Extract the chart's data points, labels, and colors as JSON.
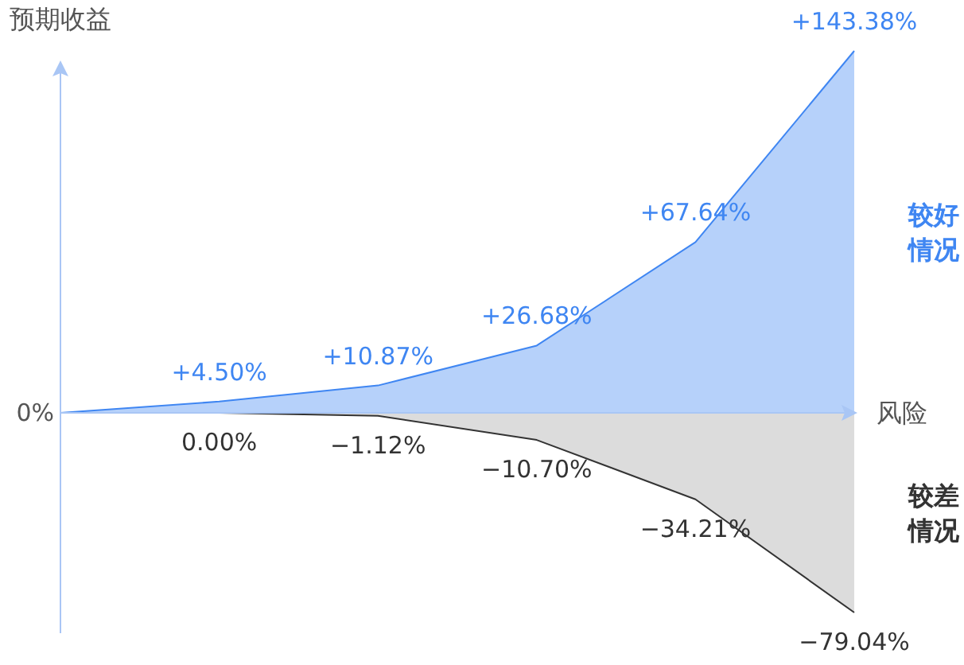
{
  "chart_data": {
    "type": "area",
    "ylabel": "预期收益",
    "xlabel": "风险",
    "categories": [
      null,
      null,
      null,
      null,
      null,
      null
    ],
    "annotations": [
      "0%"
    ],
    "ref_lines": [
      {
        "axis": "y",
        "value": 0,
        "color": "#a9c6f5"
      }
    ],
    "series": [
      {
        "name": "较好情况",
        "color": "#3f86f2",
        "values": [
          0,
          4.5,
          10.87,
          26.68,
          67.64,
          143.38
        ],
        "value_labels": [
          null,
          "+4.50%",
          "+10.87%",
          "+26.68%",
          "+67.64%",
          "+143.38%"
        ]
      },
      {
        "name": "较差情况",
        "color": "#333333",
        "values": [
          0,
          0.0,
          -1.12,
          -10.7,
          -34.21,
          -79.04
        ],
        "value_labels": [
          null,
          "0.00%",
          "−1.12%",
          "−10.70%",
          "−34.21%",
          "−79.04%"
        ]
      }
    ],
    "marker": "none",
    "grid": false,
    "legend": false
  }
}
